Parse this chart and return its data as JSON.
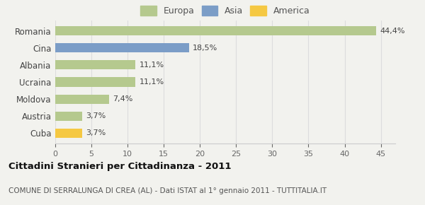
{
  "categories": [
    "Romania",
    "Cina",
    "Albania",
    "Ucraina",
    "Moldova",
    "Austria",
    "Cuba"
  ],
  "values": [
    44.4,
    18.5,
    11.1,
    11.1,
    7.4,
    3.7,
    3.7
  ],
  "labels": [
    "44,4%",
    "18,5%",
    "11,1%",
    "11,1%",
    "7,4%",
    "3,7%",
    "3,7%"
  ],
  "colors": [
    "#b5c98e",
    "#7b9dc7",
    "#b5c98e",
    "#b5c98e",
    "#b5c98e",
    "#b5c98e",
    "#f5c842"
  ],
  "legend_labels": [
    "Europa",
    "Asia",
    "America"
  ],
  "legend_colors": [
    "#b5c98e",
    "#7b9dc7",
    "#f5c842"
  ],
  "title": "Cittadini Stranieri per Cittadinanza - 2011",
  "subtitle": "COMUNE DI SERRALUNGA DI CREA (AL) - Dati ISTAT al 1° gennaio 2011 - TUTTITALIA.IT",
  "xlim": [
    0,
    47
  ],
  "xticks": [
    0,
    5,
    10,
    15,
    20,
    25,
    30,
    35,
    40,
    45
  ],
  "background_color": "#f2f2ee",
  "bar_height": 0.55,
  "label_fontsize": 8,
  "ytick_fontsize": 8.5,
  "xtick_fontsize": 8,
  "title_fontsize": 9.5,
  "subtitle_fontsize": 7.5
}
